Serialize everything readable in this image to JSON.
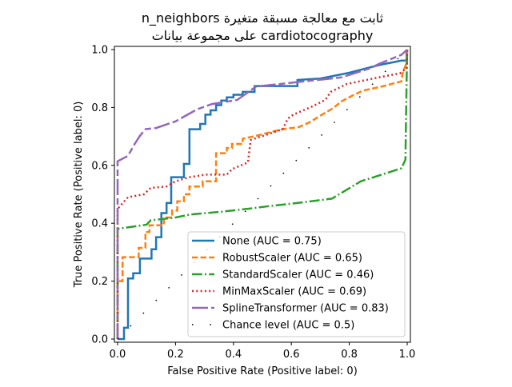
{
  "chart_data": {
    "type": "line",
    "title": [
      "n_neighbors ثابت مع معالجة مسبقة متغيرة",
      "على مجموعة بيانات cardiotocography"
    ],
    "xlabel": "False Positive Rate (Positive label: 0)",
    "ylabel": "True Positive Rate (Positive label: 0)",
    "xlim": [
      0,
      1
    ],
    "ylim": [
      0,
      1
    ],
    "xticks": [
      "0.0",
      "0.2",
      "0.4",
      "0.6",
      "0.8",
      "1.0"
    ],
    "yticks": [
      "0.0",
      "0.2",
      "0.4",
      "0.6",
      "0.8",
      "1.0"
    ],
    "grid": false,
    "legend_placement": "lower-right",
    "series": [
      {
        "name": "None (AUC = 0.75)",
        "color": "#1f77b4",
        "style": "solid",
        "points": [
          [
            0,
            0
          ],
          [
            0.022,
            0
          ],
          [
            0.022,
            0.039
          ],
          [
            0.036,
            0.039
          ],
          [
            0.036,
            0.209
          ],
          [
            0.054,
            0.209
          ],
          [
            0.054,
            0.227
          ],
          [
            0.077,
            0.227
          ],
          [
            0.077,
            0.278
          ],
          [
            0.117,
            0.278
          ],
          [
            0.117,
            0.31
          ],
          [
            0.133,
            0.31
          ],
          [
            0.133,
            0.352
          ],
          [
            0.151,
            0.352
          ],
          [
            0.151,
            0.435
          ],
          [
            0.169,
            0.435
          ],
          [
            0.169,
            0.47
          ],
          [
            0.185,
            0.47
          ],
          [
            0.185,
            0.559
          ],
          [
            0.229,
            0.559
          ],
          [
            0.229,
            0.605
          ],
          [
            0.248,
            0.605
          ],
          [
            0.248,
            0.725
          ],
          [
            0.285,
            0.725
          ],
          [
            0.285,
            0.743
          ],
          [
            0.303,
            0.743
          ],
          [
            0.303,
            0.775
          ],
          [
            0.321,
            0.775
          ],
          [
            0.321,
            0.79
          ],
          [
            0.34,
            0.79
          ],
          [
            0.34,
            0.808
          ],
          [
            0.358,
            0.808
          ],
          [
            0.358,
            0.824
          ],
          [
            0.377,
            0.824
          ],
          [
            0.377,
            0.835
          ],
          [
            0.4,
            0.835
          ],
          [
            0.4,
            0.844
          ],
          [
            0.432,
            0.844
          ],
          [
            0.432,
            0.854
          ],
          [
            0.473,
            0.854
          ],
          [
            0.473,
            0.874
          ],
          [
            0.621,
            0.874
          ],
          [
            0.621,
            0.895
          ],
          [
            0.7,
            0.9
          ],
          [
            0.8,
            0.92
          ],
          [
            0.901,
            0.946
          ],
          [
            0.98,
            0.962
          ],
          [
            0.998,
            0.962
          ],
          [
            0.998,
            1.0
          ]
        ]
      },
      {
        "name": "RobustScaler (AUC = 0.65)",
        "color": "#ff7f0e",
        "style": "dashed",
        "points": [
          [
            0,
            0
          ],
          [
            0,
            0.2
          ],
          [
            0.017,
            0.2
          ],
          [
            0.017,
            0.283
          ],
          [
            0.073,
            0.283
          ],
          [
            0.073,
            0.315
          ],
          [
            0.096,
            0.315
          ],
          [
            0.096,
            0.37
          ],
          [
            0.11,
            0.37
          ],
          [
            0.11,
            0.393
          ],
          [
            0.16,
            0.393
          ],
          [
            0.16,
            0.42
          ],
          [
            0.188,
            0.42
          ],
          [
            0.188,
            0.444
          ],
          [
            0.206,
            0.444
          ],
          [
            0.206,
            0.476
          ],
          [
            0.229,
            0.476
          ],
          [
            0.229,
            0.5
          ],
          [
            0.248,
            0.5
          ],
          [
            0.248,
            0.527
          ],
          [
            0.294,
            0.527
          ],
          [
            0.294,
            0.545
          ],
          [
            0.34,
            0.545
          ],
          [
            0.34,
            0.642
          ],
          [
            0.377,
            0.642
          ],
          [
            0.377,
            0.66
          ],
          [
            0.395,
            0.66
          ],
          [
            0.395,
            0.674
          ],
          [
            0.432,
            0.674
          ],
          [
            0.432,
            0.692
          ],
          [
            0.478,
            0.702
          ],
          [
            0.533,
            0.716
          ],
          [
            0.57,
            0.725
          ],
          [
            0.625,
            0.732
          ],
          [
            0.662,
            0.748
          ],
          [
            0.699,
            0.771
          ],
          [
            0.745,
            0.798
          ],
          [
            0.773,
            0.821
          ],
          [
            0.809,
            0.84
          ],
          [
            0.846,
            0.858
          ],
          [
            0.911,
            0.872
          ],
          [
            0.98,
            0.89
          ],
          [
            0.984,
            0.918
          ],
          [
            0.998,
            0.955
          ],
          [
            1,
            1
          ]
        ]
      },
      {
        "name": "StandardScaler (AUC = 0.46)",
        "color": "#2ca02c",
        "style": "dashdot",
        "points": [
          [
            0,
            0
          ],
          [
            0,
            0.38
          ],
          [
            0.03,
            0.385
          ],
          [
            0.1,
            0.395
          ],
          [
            0.114,
            0.41
          ],
          [
            0.2,
            0.42
          ],
          [
            0.25,
            0.43
          ],
          [
            0.36,
            0.44
          ],
          [
            0.45,
            0.45
          ],
          [
            0.53,
            0.46
          ],
          [
            0.62,
            0.47
          ],
          [
            0.74,
            0.485
          ],
          [
            0.79,
            0.515
          ],
          [
            0.84,
            0.545
          ],
          [
            0.9,
            0.564
          ],
          [
            0.98,
            0.59
          ],
          [
            0.994,
            0.62
          ],
          [
            0.998,
            0.9
          ],
          [
            1,
            1
          ]
        ]
      },
      {
        "name": "MinMaxScaler (AUC = 0.69)",
        "color": "#d62728",
        "style": "dotted",
        "points": [
          [
            0,
            0
          ],
          [
            0,
            0.45
          ],
          [
            0.036,
            0.49
          ],
          [
            0.091,
            0.5
          ],
          [
            0.114,
            0.522
          ],
          [
            0.169,
            0.527
          ],
          [
            0.2,
            0.545
          ],
          [
            0.248,
            0.559
          ],
          [
            0.303,
            0.568
          ],
          [
            0.377,
            0.568
          ],
          [
            0.395,
            0.587
          ],
          [
            0.45,
            0.61
          ],
          [
            0.455,
            0.651
          ],
          [
            0.46,
            0.688
          ],
          [
            0.515,
            0.706
          ],
          [
            0.57,
            0.725
          ],
          [
            0.588,
            0.762
          ],
          [
            0.607,
            0.775
          ],
          [
            0.671,
            0.803
          ],
          [
            0.717,
            0.826
          ],
          [
            0.736,
            0.854
          ],
          [
            0.791,
            0.881
          ],
          [
            0.901,
            0.904
          ],
          [
            0.975,
            0.918
          ],
          [
            0.998,
            0.936
          ],
          [
            1,
            1
          ]
        ]
      },
      {
        "name": "SplineTransformer (AUC = 0.83)",
        "color": "#9467bd",
        "style": "longdash",
        "points": [
          [
            0,
            0
          ],
          [
            0,
            0.614
          ],
          [
            0.036,
            0.633
          ],
          [
            0.059,
            0.674
          ],
          [
            0.077,
            0.702
          ],
          [
            0.096,
            0.725
          ],
          [
            0.133,
            0.729
          ],
          [
            0.2,
            0.752
          ],
          [
            0.275,
            0.794
          ],
          [
            0.326,
            0.812
          ],
          [
            0.413,
            0.826
          ],
          [
            0.478,
            0.872
          ],
          [
            0.644,
            0.89
          ],
          [
            0.773,
            0.904
          ],
          [
            0.874,
            0.936
          ],
          [
            0.901,
            0.95
          ],
          [
            0.98,
            0.982
          ],
          [
            1,
            1
          ]
        ]
      },
      {
        "name": "Chance level (AUC = 0.5)",
        "color": "#000000",
        "style": "chance",
        "points": [
          [
            0,
            0
          ],
          [
            1,
            1
          ]
        ]
      }
    ]
  }
}
